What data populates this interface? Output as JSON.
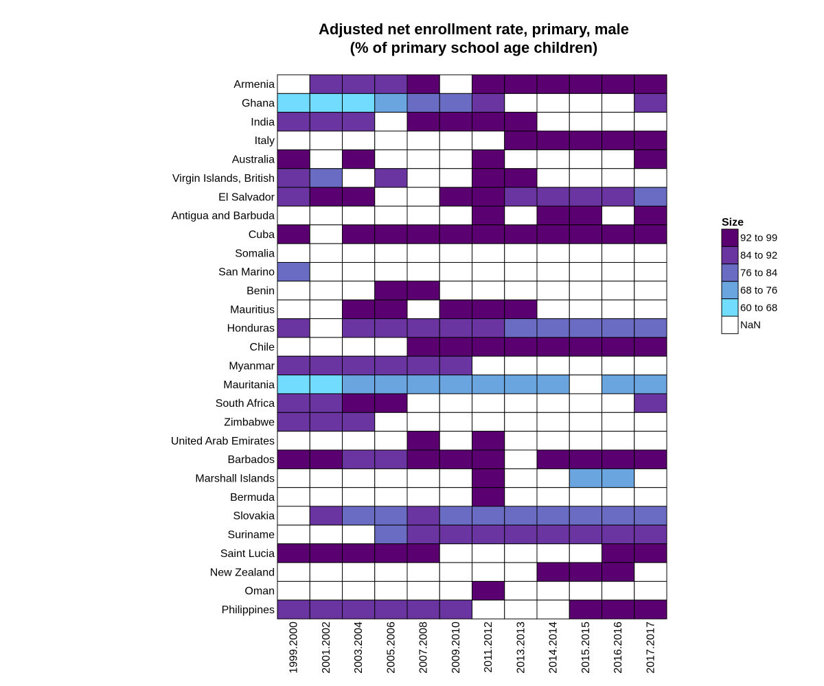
{
  "chart_data": {
    "type": "heatmap",
    "title": [
      "Adjusted net enrollment rate, primary, male",
      "(% of primary school age children)"
    ],
    "xlabel": "",
    "ylabel": "",
    "columns": [
      "1999.2000",
      "2001.2002",
      "2003.2004",
      "2005.2006",
      "2007.2008",
      "2009.2010",
      "2011.2012",
      "2013.2013",
      "2014.2014",
      "2015.2015",
      "2016.2016",
      "2017.2017"
    ],
    "rows": [
      "Armenia",
      "Ghana",
      "India",
      "Italy",
      "Australia",
      "Virgin Islands, British",
      "El Salvador",
      "Antigua and Barbuda",
      "Cuba",
      "Somalia",
      "San Marino",
      "Benin",
      "Mauritius",
      "Honduras",
      "Chile",
      "Myanmar",
      "Mauritania",
      "South Africa",
      "Zimbabwe",
      "United Arab Emirates",
      "Barbados",
      "Marshall Islands",
      "Bermuda",
      "Slovakia",
      "Suriname",
      "Saint Lucia",
      "New Zealand",
      "Oman",
      "Philippines"
    ],
    "bins": [
      "92 to 99",
      "84 to 92",
      "76 to 84",
      "68 to 76",
      "60 to 68",
      "NaN"
    ],
    "bin_colors": [
      "#5a0070",
      "#6a35a0",
      "#6a6cc4",
      "#6aa5e0",
      "#72dcff",
      "#ffffff"
    ],
    "cells": [
      [
        "NaN",
        "84 to 92",
        "84 to 92",
        "84 to 92",
        "92 to 99",
        "NaN",
        "92 to 99",
        "92 to 99",
        "92 to 99",
        "92 to 99",
        "92 to 99",
        "92 to 99"
      ],
      [
        "60 to 68",
        "60 to 68",
        "60 to 68",
        "68 to 76",
        "76 to 84",
        "76 to 84",
        "84 to 92",
        "NaN",
        "NaN",
        "NaN",
        "NaN",
        "84 to 92"
      ],
      [
        "84 to 92",
        "84 to 92",
        "84 to 92",
        "NaN",
        "92 to 99",
        "92 to 99",
        "92 to 99",
        "92 to 99",
        "NaN",
        "NaN",
        "NaN",
        "NaN"
      ],
      [
        "NaN",
        "NaN",
        "NaN",
        "NaN",
        "NaN",
        "NaN",
        "NaN",
        "92 to 99",
        "92 to 99",
        "92 to 99",
        "92 to 99",
        "92 to 99"
      ],
      [
        "92 to 99",
        "NaN",
        "92 to 99",
        "NaN",
        "NaN",
        "NaN",
        "92 to 99",
        "NaN",
        "NaN",
        "NaN",
        "NaN",
        "92 to 99"
      ],
      [
        "84 to 92",
        "76 to 84",
        "NaN",
        "84 to 92",
        "NaN",
        "NaN",
        "92 to 99",
        "92 to 99",
        "NaN",
        "NaN",
        "NaN",
        "NaN"
      ],
      [
        "84 to 92",
        "92 to 99",
        "92 to 99",
        "NaN",
        "NaN",
        "92 to 99",
        "92 to 99",
        "84 to 92",
        "84 to 92",
        "84 to 92",
        "84 to 92",
        "76 to 84"
      ],
      [
        "NaN",
        "NaN",
        "NaN",
        "NaN",
        "NaN",
        "NaN",
        "92 to 99",
        "NaN",
        "92 to 99",
        "92 to 99",
        "NaN",
        "92 to 99"
      ],
      [
        "92 to 99",
        "NaN",
        "92 to 99",
        "92 to 99",
        "92 to 99",
        "92 to 99",
        "92 to 99",
        "92 to 99",
        "92 to 99",
        "92 to 99",
        "92 to 99",
        "92 to 99"
      ],
      [
        "NaN",
        "NaN",
        "NaN",
        "NaN",
        "NaN",
        "NaN",
        "NaN",
        "NaN",
        "NaN",
        "NaN",
        "NaN",
        "NaN"
      ],
      [
        "76 to 84",
        "NaN",
        "NaN",
        "NaN",
        "NaN",
        "NaN",
        "NaN",
        "NaN",
        "NaN",
        "NaN",
        "NaN",
        "NaN"
      ],
      [
        "NaN",
        "NaN",
        "NaN",
        "92 to 99",
        "92 to 99",
        "NaN",
        "NaN",
        "NaN",
        "NaN",
        "NaN",
        "NaN",
        "NaN"
      ],
      [
        "NaN",
        "NaN",
        "92 to 99",
        "92 to 99",
        "NaN",
        "92 to 99",
        "92 to 99",
        "92 to 99",
        "NaN",
        "NaN",
        "NaN",
        "NaN"
      ],
      [
        "84 to 92",
        "NaN",
        "84 to 92",
        "84 to 92",
        "84 to 92",
        "84 to 92",
        "84 to 92",
        "76 to 84",
        "76 to 84",
        "76 to 84",
        "76 to 84",
        "76 to 84"
      ],
      [
        "NaN",
        "NaN",
        "NaN",
        "NaN",
        "92 to 99",
        "92 to 99",
        "92 to 99",
        "92 to 99",
        "92 to 99",
        "92 to 99",
        "92 to 99",
        "92 to 99"
      ],
      [
        "84 to 92",
        "84 to 92",
        "84 to 92",
        "84 to 92",
        "84 to 92",
        "84 to 92",
        "NaN",
        "NaN",
        "NaN",
        "NaN",
        "NaN",
        "NaN"
      ],
      [
        "60 to 68",
        "60 to 68",
        "68 to 76",
        "68 to 76",
        "68 to 76",
        "68 to 76",
        "68 to 76",
        "68 to 76",
        "68 to 76",
        "NaN",
        "68 to 76",
        "68 to 76"
      ],
      [
        "84 to 92",
        "84 to 92",
        "92 to 99",
        "92 to 99",
        "NaN",
        "NaN",
        "NaN",
        "NaN",
        "NaN",
        "NaN",
        "NaN",
        "84 to 92"
      ],
      [
        "84 to 92",
        "84 to 92",
        "84 to 92",
        "NaN",
        "NaN",
        "NaN",
        "NaN",
        "NaN",
        "NaN",
        "NaN",
        "NaN",
        "NaN"
      ],
      [
        "NaN",
        "NaN",
        "NaN",
        "NaN",
        "92 to 99",
        "NaN",
        "92 to 99",
        "NaN",
        "NaN",
        "NaN",
        "NaN",
        "NaN"
      ],
      [
        "92 to 99",
        "92 to 99",
        "84 to 92",
        "84 to 92",
        "92 to 99",
        "92 to 99",
        "92 to 99",
        "NaN",
        "92 to 99",
        "92 to 99",
        "92 to 99",
        "92 to 99"
      ],
      [
        "NaN",
        "NaN",
        "NaN",
        "NaN",
        "NaN",
        "NaN",
        "92 to 99",
        "NaN",
        "NaN",
        "68 to 76",
        "68 to 76",
        "NaN"
      ],
      [
        "NaN",
        "NaN",
        "NaN",
        "NaN",
        "NaN",
        "NaN",
        "92 to 99",
        "NaN",
        "NaN",
        "NaN",
        "NaN",
        "NaN"
      ],
      [
        "NaN",
        "84 to 92",
        "76 to 84",
        "76 to 84",
        "84 to 92",
        "76 to 84",
        "76 to 84",
        "76 to 84",
        "76 to 84",
        "76 to 84",
        "76 to 84",
        "76 to 84"
      ],
      [
        "NaN",
        "NaN",
        "NaN",
        "76 to 84",
        "84 to 92",
        "84 to 92",
        "84 to 92",
        "84 to 92",
        "84 to 92",
        "84 to 92",
        "84 to 92",
        "84 to 92"
      ],
      [
        "92 to 99",
        "92 to 99",
        "92 to 99",
        "92 to 99",
        "92 to 99",
        "NaN",
        "NaN",
        "NaN",
        "NaN",
        "NaN",
        "92 to 99",
        "92 to 99"
      ],
      [
        "NaN",
        "NaN",
        "NaN",
        "NaN",
        "NaN",
        "NaN",
        "NaN",
        "NaN",
        "92 to 99",
        "92 to 99",
        "92 to 99",
        "NaN"
      ],
      [
        "NaN",
        "NaN",
        "NaN",
        "NaN",
        "NaN",
        "NaN",
        "92 to 99",
        "NaN",
        "NaN",
        "NaN",
        "NaN",
        "NaN"
      ],
      [
        "84 to 92",
        "84 to 92",
        "84 to 92",
        "84 to 92",
        "84 to 92",
        "84 to 92",
        "NaN",
        "NaN",
        "NaN",
        "92 to 99",
        "92 to 99",
        "92 to 99"
      ]
    ],
    "legend": {
      "title": "Size",
      "placement": "right"
    },
    "grid": false
  }
}
